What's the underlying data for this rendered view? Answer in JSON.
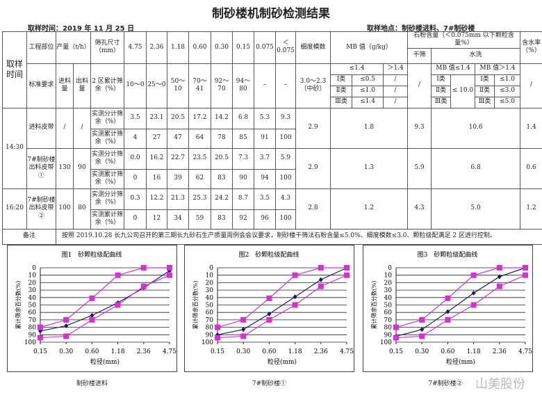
{
  "title": "制砂楼机制砂检测结果",
  "sample_time": "取样时间：2019 年 11 月 25 日",
  "sample_place": "取样地点：制砂楼进料、7#制砂楼",
  "header": {
    "time": "取样时间",
    "part": "工程部位",
    "output": "产量（t/h）",
    "sieve": "筛孔尺寸（mm）",
    "sizes": [
      "4.75",
      "2.36",
      "1.18",
      "0.60",
      "0.30",
      "0.15",
      "0.075",
      "＜0.075"
    ],
    "fineness": "细度模数",
    "mb": "MB 值（g/kg）",
    "powder": "石粉含量（＜0.075mm 以下颗粒含量%）",
    "dry": "干筛",
    "wash": "水洗",
    "moisture": "含水率（%）",
    "std": "标准要求",
    "in": "进料量",
    "out": "出料量",
    "zone": "2 区累计筛余（%）",
    "zone_vals": [
      "10～0",
      "25～0",
      "50～10",
      "70～41",
      "92～70",
      "94～80",
      "–",
      "–"
    ],
    "fineness_std": "3.0～2.3（中砂）",
    "mb_le": "≤1.4",
    "mb_gt": "＞1.4",
    "classes": [
      "Ⅰ类",
      "Ⅱ类",
      "Ⅲ类"
    ],
    "mb_vals": [
      "≤0.5",
      "≤1.0",
      "≤1.4"
    ],
    "slash": "/",
    "wash_le": "MB 值≤1.4",
    "wash_gt": "MB 值＞1.4",
    "wash_le_val": "≤ 10.0",
    "wash_gt_vals": [
      "≤1.0",
      "≤3.0",
      "≤5.0"
    ]
  },
  "rows": [
    {
      "time": "14:30",
      "part": "进料皮带",
      "in": "/",
      "out": "/",
      "sep": [
        "3.5",
        "23.1",
        "20.5",
        "17.2",
        "14.2",
        "6.8",
        "5.3",
        "9.3"
      ],
      "cum": [
        "4",
        "27",
        "47",
        "64",
        "78",
        "85",
        "91",
        "100"
      ],
      "fineness": "2.9",
      "mb": "1.8",
      "dry": "9.3",
      "wash": "10.6",
      "moisture": "1.4"
    },
    {
      "part": "7#制砂楼出料皮带①",
      "in": "130",
      "out": "90",
      "sep": [
        "0.0",
        "16.2",
        "22.7",
        "23.5",
        "20.5",
        "7.3",
        "3.7",
        "5.9"
      ],
      "cum": [
        "0",
        "16",
        "39",
        "62",
        "83",
        "90",
        "94",
        "100"
      ],
      "fineness": "2.9",
      "mb": "1.3",
      "dry": "5.9",
      "wash": "6.8",
      "moisture": "0.6"
    },
    {
      "time": "16:20",
      "part": "7#制砂楼出料皮带②",
      "in": "100",
      "out": "80",
      "sep": [
        "0.3",
        "12.2",
        "21.3",
        "25.3",
        "24.2",
        "8.7",
        "3.5",
        "4.3"
      ],
      "cum": [
        "0",
        "12",
        "34",
        "59",
        "83",
        "92",
        "96",
        "100"
      ],
      "fineness": "2.8",
      "mb": "1.2",
      "dry": "4.3",
      "wash": "5.0",
      "moisture": "1.2"
    }
  ],
  "sep_label": "实测分计筛余（%）",
  "cum_label": "实测累计筛余（%）",
  "remark_label": "备注",
  "remark": "按照 2019.10.28 长九公司召开的第三期长九砂石生产质量周例会会议要求，制砂楼干筛法石粉含量≤5.0%、细度模数≤3.0、颗粒级配满足 2 区进行控制。",
  "watermark": "山美股份",
  "chart_data": [
    {
      "type": "line",
      "title": "图1　砂颗粒级配曲线",
      "caption": "制砂楼进料",
      "xlabel": "粒径(mm)",
      "ylabel": "累计筛余百分数(%)",
      "categories": [
        "0.15",
        "0.30",
        "0.60",
        "1.18",
        "2.36",
        "4.75"
      ],
      "ylim": [
        100,
        0
      ],
      "yticks": [
        0,
        10,
        20,
        30,
        40,
        50,
        60,
        70,
        80,
        90,
        100
      ],
      "grid": true,
      "series": [
        {
          "values": [
            85,
            78,
            64,
            47,
            27,
            4
          ],
          "color": "#1a1a66",
          "marker": "diamond"
        },
        {
          "values": [
            80,
            70,
            41,
            10,
            0,
            0
          ],
          "color": "#d62fd6",
          "marker": "square"
        },
        {
          "values": [
            94,
            92,
            70,
            50,
            25,
            10
          ],
          "color": "#d62fd6",
          "marker": "square"
        }
      ]
    },
    {
      "type": "line",
      "title": "图2　砂颗粒级配曲线",
      "caption": "7#制砂楼①",
      "xlabel": "粒径(mm)",
      "ylabel": "累计筛余百分数(%)",
      "categories": [
        "0.15",
        "0.30",
        "0.60",
        "1.18",
        "2.36",
        "4.75"
      ],
      "ylim": [
        100,
        0
      ],
      "yticks": [
        0,
        10,
        20,
        30,
        40,
        50,
        60,
        70,
        80,
        90,
        100
      ],
      "grid": true,
      "series": [
        {
          "values": [
            90,
            83,
            62,
            39,
            16,
            0
          ],
          "color": "#1a1a66",
          "marker": "diamond"
        },
        {
          "values": [
            80,
            70,
            41,
            10,
            0,
            0
          ],
          "color": "#d62fd6",
          "marker": "square"
        },
        {
          "values": [
            94,
            92,
            70,
            50,
            25,
            10
          ],
          "color": "#d62fd6",
          "marker": "square"
        }
      ]
    },
    {
      "type": "line",
      "title": "图3　砂颗粒级配曲线",
      "caption": "7#制砂楼②",
      "xlabel": "粒径(mm)",
      "ylabel": "累计筛余百分数(%)",
      "categories": [
        "0.15",
        "0.30",
        "0.60",
        "1.18",
        "2.36",
        "4.75"
      ],
      "ylim": [
        100,
        0
      ],
      "yticks": [
        0,
        10,
        20,
        30,
        40,
        50,
        60,
        70,
        80,
        90,
        100
      ],
      "grid": true,
      "series": [
        {
          "values": [
            92,
            83,
            59,
            34,
            12,
            0
          ],
          "color": "#1a1a66",
          "marker": "diamond"
        },
        {
          "values": [
            80,
            70,
            41,
            10,
            0,
            0
          ],
          "color": "#d62fd6",
          "marker": "square"
        },
        {
          "values": [
            94,
            92,
            70,
            50,
            25,
            10
          ],
          "color": "#d62fd6",
          "marker": "square"
        }
      ]
    }
  ]
}
